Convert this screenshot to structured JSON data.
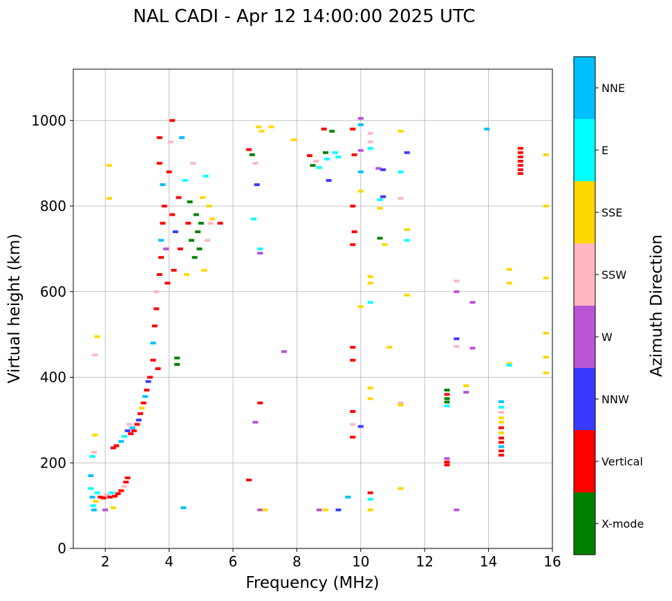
{
  "chart_data": {
    "type": "scatter",
    "title": "NAL CADI - Apr 12 14:00:00 2025 UTC",
    "xlabel": "Frequency (MHz)",
    "ylabel": "Virtual height (km)",
    "xlim": [
      1,
      16
    ],
    "ylim": [
      0,
      1120
    ],
    "xticks": [
      2,
      4,
      6,
      8,
      10,
      12,
      14,
      16
    ],
    "yticks": [
      0,
      200,
      400,
      600,
      800,
      1000
    ],
    "grid": true,
    "colorbar": {
      "label": "Azimuth Direction",
      "categories": [
        {
          "name": "X-mode",
          "color": "#008000"
        },
        {
          "name": "Vertical",
          "color": "#ff0000"
        },
        {
          "name": "NNW",
          "color": "#3a3aff"
        },
        {
          "name": "W",
          "color": "#b955d6"
        },
        {
          "name": "SSW",
          "color": "#ffb6c1"
        },
        {
          "name": "SSE",
          "color": "#ffd700"
        },
        {
          "name": "E",
          "color": "#00ffff"
        },
        {
          "name": "NNE",
          "color": "#00bfff"
        }
      ]
    },
    "echoes": [
      {
        "f": 1.55,
        "h": 140,
        "dir": "E"
      },
      {
        "f": 1.6,
        "h": 120,
        "dir": "NNE"
      },
      {
        "f": 1.62,
        "h": 100,
        "dir": "E"
      },
      {
        "f": 1.65,
        "h": 90,
        "dir": "NNE"
      },
      {
        "f": 1.55,
        "h": 170,
        "dir": "NNE"
      },
      {
        "f": 1.6,
        "h": 215,
        "dir": "E"
      },
      {
        "f": 1.65,
        "h": 225,
        "dir": "SSW"
      },
      {
        "f": 1.68,
        "h": 265,
        "dir": "SSE"
      },
      {
        "f": 1.7,
        "h": 110,
        "dir": "SSE"
      },
      {
        "f": 1.75,
        "h": 130,
        "dir": "E"
      },
      {
        "f": 1.85,
        "h": 120,
        "dir": "Vertical"
      },
      {
        "f": 1.95,
        "h": 118,
        "dir": "Vertical"
      },
      {
        "f": 2.0,
        "h": 90,
        "dir": "W"
      },
      {
        "f": 2.05,
        "h": 125,
        "dir": "SSW"
      },
      {
        "f": 2.15,
        "h": 120,
        "dir": "Vertical"
      },
      {
        "f": 2.2,
        "h": 130,
        "dir": "E"
      },
      {
        "f": 2.25,
        "h": 95,
        "dir": "SSE"
      },
      {
        "f": 2.3,
        "h": 122,
        "dir": "Vertical"
      },
      {
        "f": 2.4,
        "h": 128,
        "dir": "Vertical"
      },
      {
        "f": 2.5,
        "h": 135,
        "dir": "Vertical"
      },
      {
        "f": 2.6,
        "h": 145,
        "dir": "SSW"
      },
      {
        "f": 2.65,
        "h": 155,
        "dir": "Vertical"
      },
      {
        "f": 2.7,
        "h": 165,
        "dir": "Vertical"
      },
      {
        "f": 2.12,
        "h": 818,
        "dir": "SSE"
      },
      {
        "f": 2.12,
        "h": 895,
        "dir": "SSE"
      },
      {
        "f": 1.75,
        "h": 495,
        "dir": "SSE"
      },
      {
        "f": 1.68,
        "h": 452,
        "dir": "SSW"
      },
      {
        "f": 2.25,
        "h": 235,
        "dir": "Vertical"
      },
      {
        "f": 2.35,
        "h": 240,
        "dir": "Vertical"
      },
      {
        "f": 2.5,
        "h": 250,
        "dir": "NNE"
      },
      {
        "f": 2.6,
        "h": 262,
        "dir": "E"
      },
      {
        "f": 2.7,
        "h": 275,
        "dir": "NNW"
      },
      {
        "f": 2.75,
        "h": 290,
        "dir": "SSW"
      },
      {
        "f": 2.8,
        "h": 268,
        "dir": "Vertical"
      },
      {
        "f": 2.85,
        "h": 282,
        "dir": "NNE"
      },
      {
        "f": 2.9,
        "h": 275,
        "dir": "Vertical"
      },
      {
        "f": 3.0,
        "h": 290,
        "dir": "Vertical"
      },
      {
        "f": 3.05,
        "h": 300,
        "dir": "NNW"
      },
      {
        "f": 3.1,
        "h": 315,
        "dir": "Vertical"
      },
      {
        "f": 3.15,
        "h": 328,
        "dir": "SSE"
      },
      {
        "f": 3.2,
        "h": 340,
        "dir": "Vertical"
      },
      {
        "f": 3.25,
        "h": 355,
        "dir": "NNE"
      },
      {
        "f": 3.3,
        "h": 370,
        "dir": "Vertical"
      },
      {
        "f": 3.35,
        "h": 390,
        "dir": "NNW"
      },
      {
        "f": 3.4,
        "h": 400,
        "dir": "Vertical"
      },
      {
        "f": 3.5,
        "h": 440,
        "dir": "Vertical"
      },
      {
        "f": 3.5,
        "h": 480,
        "dir": "NNE"
      },
      {
        "f": 3.55,
        "h": 520,
        "dir": "Vertical"
      },
      {
        "f": 3.6,
        "h": 560,
        "dir": "Vertical"
      },
      {
        "f": 3.6,
        "h": 600,
        "dir": "SSW"
      },
      {
        "f": 3.65,
        "h": 420,
        "dir": "Vertical"
      },
      {
        "f": 3.7,
        "h": 640,
        "dir": "Vertical"
      },
      {
        "f": 3.75,
        "h": 680,
        "dir": "Vertical"
      },
      {
        "f": 3.75,
        "h": 720,
        "dir": "NNE"
      },
      {
        "f": 3.8,
        "h": 760,
        "dir": "Vertical"
      },
      {
        "f": 3.85,
        "h": 800,
        "dir": "Vertical"
      },
      {
        "f": 3.8,
        "h": 850,
        "dir": "NNE"
      },
      {
        "f": 3.7,
        "h": 900,
        "dir": "Vertical"
      },
      {
        "f": 3.7,
        "h": 960,
        "dir": "Vertical"
      },
      {
        "f": 3.9,
        "h": 700,
        "dir": "W"
      },
      {
        "f": 3.95,
        "h": 620,
        "dir": "Vertical"
      },
      {
        "f": 4.0,
        "h": 880,
        "dir": "Vertical"
      },
      {
        "f": 4.05,
        "h": 950,
        "dir": "SSW"
      },
      {
        "f": 4.1,
        "h": 1000,
        "dir": "Vertical"
      },
      {
        "f": 4.1,
        "h": 780,
        "dir": "Vertical"
      },
      {
        "f": 4.15,
        "h": 650,
        "dir": "Vertical"
      },
      {
        "f": 4.2,
        "h": 740,
        "dir": "NNW"
      },
      {
        "f": 4.25,
        "h": 445,
        "dir": "X-mode"
      },
      {
        "f": 4.25,
        "h": 430,
        "dir": "X-mode"
      },
      {
        "f": 4.3,
        "h": 820,
        "dir": "Vertical"
      },
      {
        "f": 4.35,
        "h": 700,
        "dir": "Vertical"
      },
      {
        "f": 4.4,
        "h": 960,
        "dir": "NNE"
      },
      {
        "f": 4.45,
        "h": 95,
        "dir": "NNE"
      },
      {
        "f": 4.5,
        "h": 860,
        "dir": "E"
      },
      {
        "f": 4.55,
        "h": 640,
        "dir": "SSE"
      },
      {
        "f": 4.6,
        "h": 760,
        "dir": "Vertical"
      },
      {
        "f": 4.65,
        "h": 810,
        "dir": "X-mode"
      },
      {
        "f": 4.7,
        "h": 720,
        "dir": "X-mode"
      },
      {
        "f": 4.75,
        "h": 900,
        "dir": "SSW"
      },
      {
        "f": 4.8,
        "h": 680,
        "dir": "X-mode"
      },
      {
        "f": 4.85,
        "h": 780,
        "dir": "X-mode"
      },
      {
        "f": 4.9,
        "h": 740,
        "dir": "X-mode"
      },
      {
        "f": 4.95,
        "h": 700,
        "dir": "X-mode"
      },
      {
        "f": 5.0,
        "h": 760,
        "dir": "X-mode"
      },
      {
        "f": 5.05,
        "h": 820,
        "dir": "SSE"
      },
      {
        "f": 5.1,
        "h": 650,
        "dir": "SSE"
      },
      {
        "f": 5.15,
        "h": 870,
        "dir": "E"
      },
      {
        "f": 5.2,
        "h": 720,
        "dir": "SSW"
      },
      {
        "f": 5.25,
        "h": 800,
        "dir": "SSE"
      },
      {
        "f": 5.3,
        "h": 760,
        "dir": "SSW"
      },
      {
        "f": 5.35,
        "h": 770,
        "dir": "SSE"
      },
      {
        "f": 5.6,
        "h": 760,
        "dir": "Vertical"
      },
      {
        "f": 6.5,
        "h": 932,
        "dir": "Vertical"
      },
      {
        "f": 6.6,
        "h": 920,
        "dir": "X-mode"
      },
      {
        "f": 6.65,
        "h": 770,
        "dir": "E"
      },
      {
        "f": 6.7,
        "h": 900,
        "dir": "SSW"
      },
      {
        "f": 6.75,
        "h": 850,
        "dir": "NNW"
      },
      {
        "f": 6.8,
        "h": 985,
        "dir": "SSE"
      },
      {
        "f": 6.85,
        "h": 700,
        "dir": "E"
      },
      {
        "f": 6.85,
        "h": 690,
        "dir": "W"
      },
      {
        "f": 6.9,
        "h": 975,
        "dir": "SSE"
      },
      {
        "f": 7.2,
        "h": 985,
        "dir": "SSE"
      },
      {
        "f": 6.5,
        "h": 160,
        "dir": "Vertical"
      },
      {
        "f": 6.7,
        "h": 295,
        "dir": "W"
      },
      {
        "f": 6.85,
        "h": 340,
        "dir": "Vertical"
      },
      {
        "f": 6.85,
        "h": 90,
        "dir": "W"
      },
      {
        "f": 7.0,
        "h": 90,
        "dir": "SSE"
      },
      {
        "f": 7.6,
        "h": 460,
        "dir": "W"
      },
      {
        "f": 7.9,
        "h": 955,
        "dir": "SSE"
      },
      {
        "f": 8.4,
        "h": 918,
        "dir": "Vertical"
      },
      {
        "f": 8.5,
        "h": 895,
        "dir": "X-mode"
      },
      {
        "f": 8.6,
        "h": 905,
        "dir": "SSW"
      },
      {
        "f": 8.7,
        "h": 890,
        "dir": "E"
      },
      {
        "f": 8.85,
        "h": 980,
        "dir": "Vertical"
      },
      {
        "f": 8.9,
        "h": 925,
        "dir": "X-mode"
      },
      {
        "f": 8.95,
        "h": 910,
        "dir": "E"
      },
      {
        "f": 9.0,
        "h": 860,
        "dir": "NNW"
      },
      {
        "f": 9.1,
        "h": 975,
        "dir": "X-mode"
      },
      {
        "f": 9.2,
        "h": 925,
        "dir": "E"
      },
      {
        "f": 9.3,
        "h": 915,
        "dir": "E"
      },
      {
        "f": 8.7,
        "h": 90,
        "dir": "W"
      },
      {
        "f": 8.9,
        "h": 90,
        "dir": "SSE"
      },
      {
        "f": 9.3,
        "h": 90,
        "dir": "NNW"
      },
      {
        "f": 9.6,
        "h": 120,
        "dir": "NNE"
      },
      {
        "f": 9.75,
        "h": 980,
        "dir": "Vertical"
      },
      {
        "f": 9.8,
        "h": 920,
        "dir": "Vertical"
      },
      {
        "f": 9.75,
        "h": 800,
        "dir": "Vertical"
      },
      {
        "f": 9.8,
        "h": 740,
        "dir": "Vertical"
      },
      {
        "f": 9.75,
        "h": 710,
        "dir": "Vertical"
      },
      {
        "f": 9.75,
        "h": 470,
        "dir": "Vertical"
      },
      {
        "f": 9.75,
        "h": 440,
        "dir": "Vertical"
      },
      {
        "f": 9.75,
        "h": 320,
        "dir": "Vertical"
      },
      {
        "f": 9.75,
        "h": 290,
        "dir": "SSW"
      },
      {
        "f": 9.75,
        "h": 260,
        "dir": "Vertical"
      },
      {
        "f": 10.0,
        "h": 1005,
        "dir": "W"
      },
      {
        "f": 10.0,
        "h": 990,
        "dir": "NNE"
      },
      {
        "f": 10.0,
        "h": 930,
        "dir": "W"
      },
      {
        "f": 10.0,
        "h": 880,
        "dir": "NNE"
      },
      {
        "f": 10.0,
        "h": 835,
        "dir": "SSE"
      },
      {
        "f": 10.0,
        "h": 565,
        "dir": "SSE"
      },
      {
        "f": 10.0,
        "h": 285,
        "dir": "NNW"
      },
      {
        "f": 10.3,
        "h": 970,
        "dir": "SSW"
      },
      {
        "f": 10.3,
        "h": 950,
        "dir": "SSW"
      },
      {
        "f": 10.3,
        "h": 935,
        "dir": "E"
      },
      {
        "f": 10.3,
        "h": 635,
        "dir": "SSE"
      },
      {
        "f": 10.3,
        "h": 620,
        "dir": "SSE"
      },
      {
        "f": 10.3,
        "h": 575,
        "dir": "E"
      },
      {
        "f": 10.3,
        "h": 375,
        "dir": "SSE"
      },
      {
        "f": 10.3,
        "h": 350,
        "dir": "SSE"
      },
      {
        "f": 10.3,
        "h": 130,
        "dir": "Vertical"
      },
      {
        "f": 10.3,
        "h": 115,
        "dir": "E"
      },
      {
        "f": 10.3,
        "h": 90,
        "dir": "SSE"
      },
      {
        "f": 10.55,
        "h": 888,
        "dir": "W"
      },
      {
        "f": 10.6,
        "h": 815,
        "dir": "E"
      },
      {
        "f": 10.6,
        "h": 795,
        "dir": "SSE"
      },
      {
        "f": 10.6,
        "h": 725,
        "dir": "X-mode"
      },
      {
        "f": 10.7,
        "h": 885,
        "dir": "NNW"
      },
      {
        "f": 10.7,
        "h": 822,
        "dir": "NNW"
      },
      {
        "f": 10.75,
        "h": 710,
        "dir": "SSE"
      },
      {
        "f": 10.9,
        "h": 470,
        "dir": "SSE"
      },
      {
        "f": 11.25,
        "h": 975,
        "dir": "SSE"
      },
      {
        "f": 11.25,
        "h": 880,
        "dir": "E"
      },
      {
        "f": 11.25,
        "h": 818,
        "dir": "SSW"
      },
      {
        "f": 11.25,
        "h": 340,
        "dir": "SSW"
      },
      {
        "f": 11.25,
        "h": 335,
        "dir": "SSE"
      },
      {
        "f": 11.25,
        "h": 140,
        "dir": "SSE"
      },
      {
        "f": 11.45,
        "h": 925,
        "dir": "NNW"
      },
      {
        "f": 11.45,
        "h": 745,
        "dir": "SSE"
      },
      {
        "f": 11.45,
        "h": 720,
        "dir": "E"
      },
      {
        "f": 11.45,
        "h": 592,
        "dir": "SSE"
      },
      {
        "f": 12.7,
        "h": 370,
        "dir": "X-mode"
      },
      {
        "f": 12.7,
        "h": 360,
        "dir": "Vertical"
      },
      {
        "f": 12.7,
        "h": 350,
        "dir": "X-mode"
      },
      {
        "f": 12.7,
        "h": 342,
        "dir": "X-mode"
      },
      {
        "f": 12.7,
        "h": 333,
        "dir": "E"
      },
      {
        "f": 12.7,
        "h": 210,
        "dir": "W"
      },
      {
        "f": 12.7,
        "h": 202,
        "dir": "Vertical"
      },
      {
        "f": 12.7,
        "h": 195,
        "dir": "Vertical"
      },
      {
        "f": 13.0,
        "h": 625,
        "dir": "SSW"
      },
      {
        "f": 13.0,
        "h": 600,
        "dir": "W"
      },
      {
        "f": 13.0,
        "h": 490,
        "dir": "NNW"
      },
      {
        "f": 13.0,
        "h": 472,
        "dir": "SSW"
      },
      {
        "f": 13.0,
        "h": 90,
        "dir": "W"
      },
      {
        "f": 13.3,
        "h": 380,
        "dir": "SSE"
      },
      {
        "f": 13.3,
        "h": 365,
        "dir": "W"
      },
      {
        "f": 13.5,
        "h": 575,
        "dir": "W"
      },
      {
        "f": 13.5,
        "h": 468,
        "dir": "W"
      },
      {
        "f": 13.95,
        "h": 980,
        "dir": "NNE"
      },
      {
        "f": 14.4,
        "h": 343,
        "dir": "NNE"
      },
      {
        "f": 14.4,
        "h": 330,
        "dir": "E"
      },
      {
        "f": 14.4,
        "h": 318,
        "dir": "SSW"
      },
      {
        "f": 14.4,
        "h": 305,
        "dir": "SSE"
      },
      {
        "f": 14.4,
        "h": 295,
        "dir": "SSE"
      },
      {
        "f": 14.4,
        "h": 282,
        "dir": "Vertical"
      },
      {
        "f": 14.4,
        "h": 270,
        "dir": "SSE"
      },
      {
        "f": 14.4,
        "h": 258,
        "dir": "Vertical"
      },
      {
        "f": 14.4,
        "h": 248,
        "dir": "Vertical"
      },
      {
        "f": 14.4,
        "h": 238,
        "dir": "NNE"
      },
      {
        "f": 14.4,
        "h": 228,
        "dir": "Vertical"
      },
      {
        "f": 14.4,
        "h": 218,
        "dir": "Vertical"
      },
      {
        "f": 14.65,
        "h": 652,
        "dir": "SSE"
      },
      {
        "f": 14.65,
        "h": 620,
        "dir": "SSE"
      },
      {
        "f": 14.65,
        "h": 432,
        "dir": "SSE"
      },
      {
        "f": 14.65,
        "h": 428,
        "dir": "E"
      },
      {
        "f": 15.0,
        "h": 935,
        "dir": "Vertical"
      },
      {
        "f": 15.0,
        "h": 925,
        "dir": "Vertical"
      },
      {
        "f": 15.0,
        "h": 915,
        "dir": "Vertical"
      },
      {
        "f": 15.0,
        "h": 905,
        "dir": "Vertical"
      },
      {
        "f": 15.0,
        "h": 895,
        "dir": "Vertical"
      },
      {
        "f": 15.0,
        "h": 885,
        "dir": "Vertical"
      },
      {
        "f": 15.0,
        "h": 876,
        "dir": "Vertical"
      },
      {
        "f": 15.8,
        "h": 920,
        "dir": "SSE"
      },
      {
        "f": 15.8,
        "h": 800,
        "dir": "SSE"
      },
      {
        "f": 15.8,
        "h": 632,
        "dir": "SSE"
      },
      {
        "f": 15.8,
        "h": 503,
        "dir": "SSE"
      },
      {
        "f": 15.8,
        "h": 447,
        "dir": "SSE"
      },
      {
        "f": 15.8,
        "h": 410,
        "dir": "SSE"
      }
    ]
  }
}
